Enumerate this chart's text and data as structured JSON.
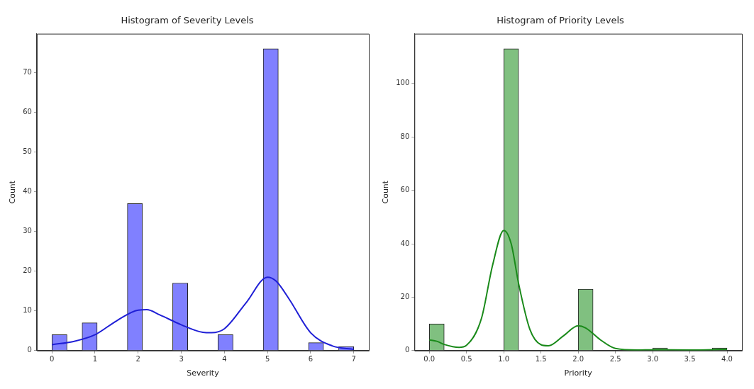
{
  "chart_data": [
    {
      "type": "histogram",
      "title": "Histogram of Severity Levels",
      "xlabel": "Severity",
      "ylabel": "Count",
      "bins": [
        0,
        0.35,
        0.7,
        1.05,
        1.4,
        1.75,
        2.1,
        2.45,
        2.8,
        3.15,
        3.5,
        3.85,
        4.2,
        4.55,
        4.9,
        5.25,
        5.6,
        5.95,
        6.3,
        6.65,
        7
      ],
      "values": [
        4,
        0,
        7,
        0,
        0,
        37,
        0,
        0,
        17,
        0,
        0,
        4,
        0,
        0,
        76,
        0,
        0,
        2,
        0,
        1
      ],
      "color": "#8080ff",
      "series": [
        {
          "type": "line",
          "color": "#1f1fd6",
          "x": [
            0,
            0.5,
            1,
            1.5,
            2,
            2.2,
            2.5,
            3,
            3.5,
            3.7,
            4,
            4.5,
            5,
            5.2,
            5.5,
            6,
            6.5,
            7
          ],
          "values": [
            1.5,
            2.3,
            4,
            7.5,
            10.2,
            10.3,
            9,
            6.5,
            4.6,
            4.5,
            5.5,
            12,
            18.5,
            17.5,
            13,
            4.5,
            1.2,
            0.3
          ]
        }
      ],
      "xlim": [
        -0.35,
        7.35
      ],
      "ylim": [
        0,
        79.8
      ],
      "xticks": [
        0,
        1,
        2,
        3,
        4,
        5,
        6,
        7
      ],
      "yticks": [
        0,
        10,
        20,
        30,
        40,
        50,
        60,
        70
      ],
      "grid": false,
      "legend": false
    },
    {
      "type": "histogram",
      "title": "Histogram of Priority Levels",
      "xlabel": "Priority",
      "ylabel": "Count",
      "bins": [
        0,
        0.2,
        0.4,
        0.6,
        0.8,
        1,
        1.2,
        1.4,
        1.6,
        1.8,
        2,
        2.2,
        2.4,
        2.6,
        2.8,
        3,
        3.2,
        3.4,
        3.6,
        3.8,
        4
      ],
      "values": [
        10,
        0,
        0,
        0,
        0,
        113,
        0,
        0,
        0,
        0,
        23,
        0,
        0,
        0,
        0,
        1,
        0,
        0,
        0,
        1
      ],
      "color": "#80c080",
      "series": [
        {
          "type": "line",
          "color": "#1a8a1a",
          "x": [
            0,
            0.1,
            0.2,
            0.4,
            0.5,
            0.7,
            0.85,
            1,
            1.1,
            1.2,
            1.35,
            1.5,
            1.6,
            1.8,
            2,
            2.1,
            2.3,
            2.5,
            2.8,
            3,
            3.5,
            4
          ],
          "values": [
            4,
            3.5,
            2.3,
            1.2,
            2,
            12,
            32,
            45,
            40,
            25,
            8,
            2.2,
            1.8,
            5.5,
            9.3,
            8.5,
            4,
            0.8,
            0.2,
            0.3,
            0.2,
            0.5
          ]
        }
      ],
      "xlim": [
        -0.2,
        4.2
      ],
      "ylim": [
        0,
        118.65
      ],
      "xticks": [
        {
          "value": 0,
          "label": "0.0"
        },
        0.5,
        {
          "value": 1,
          "label": "1.0"
        },
        1.5,
        {
          "value": 2,
          "label": "2.0"
        },
        2.5,
        {
          "value": 3,
          "label": "3.0"
        },
        3.5,
        {
          "value": 4,
          "label": "4.0"
        }
      ],
      "yticks": [
        0,
        20,
        40,
        60,
        80,
        100
      ],
      "grid": false,
      "legend": false
    }
  ]
}
